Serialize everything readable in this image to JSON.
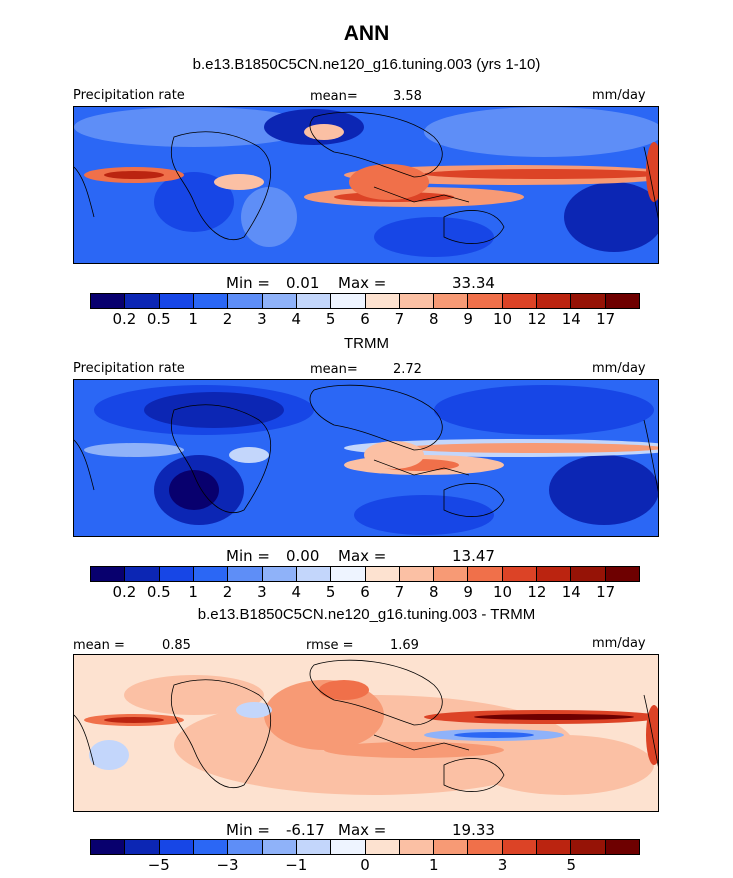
{
  "title": "ANN",
  "colors": {
    "precip_scale": [
      "#08006e",
      "#0c26b4",
      "#1746e6",
      "#2b67f5",
      "#5e8ef7",
      "#8fb2f9",
      "#c3d6fb",
      "#eef4ff",
      "#fde2d0",
      "#fbc0a4",
      "#f79a75",
      "#f0704a",
      "#dc4326",
      "#bb2410",
      "#961306",
      "#6e0000"
    ],
    "diff_scale": [
      "#08006e",
      "#0c26b4",
      "#1746e6",
      "#2b67f5",
      "#5e8ef7",
      "#8fb2f9",
      "#c3d6fb",
      "#eef4ff",
      "#fde2d0",
      "#fbc0a4",
      "#f79a75",
      "#f0704a",
      "#dc4326",
      "#bb2410",
      "#961306",
      "#6e0000"
    ]
  },
  "chart_data": [
    {
      "type": "heatmap",
      "title": "b.e13.B1850C5CN.ne120_g16.tuning.003 (yrs 1-10)",
      "variable_label": "Precipitation rate",
      "units": "mm/day",
      "mean_label": "mean=",
      "mean": "3.58",
      "min_label": "Min =",
      "min": "0.01",
      "max_label": "Max =",
      "max": "33.34",
      "contour_levels": [
        "0.2",
        "0.5",
        "1",
        "2",
        "3",
        "4",
        "5",
        "6",
        "7",
        "8",
        "9",
        "10",
        "12",
        "14",
        "17"
      ]
    },
    {
      "type": "heatmap",
      "title": "TRMM",
      "variable_label": "Precipitation rate",
      "units": "mm/day",
      "mean_label": "mean=",
      "mean": "2.72",
      "min_label": "Min =",
      "min": "0.00",
      "max_label": "Max =",
      "max": "13.47",
      "contour_levels": [
        "0.2",
        "0.5",
        "1",
        "2",
        "3",
        "4",
        "5",
        "6",
        "7",
        "8",
        "9",
        "10",
        "12",
        "14",
        "17"
      ]
    },
    {
      "type": "heatmap",
      "title": "b.e13.B1850C5CN.ne120_g16.tuning.003 - TRMM",
      "units": "mm/day",
      "mean_label": "mean =",
      "mean": "0.85",
      "rmse_label": "rmse =",
      "rmse": "1.69",
      "min_label": "Min =",
      "min": "-6.17",
      "max_label": "Max =",
      "max": "19.33",
      "contour_labels": [
        "−5",
        "−3",
        "−1",
        "0",
        "1",
        "3",
        "5"
      ]
    }
  ]
}
